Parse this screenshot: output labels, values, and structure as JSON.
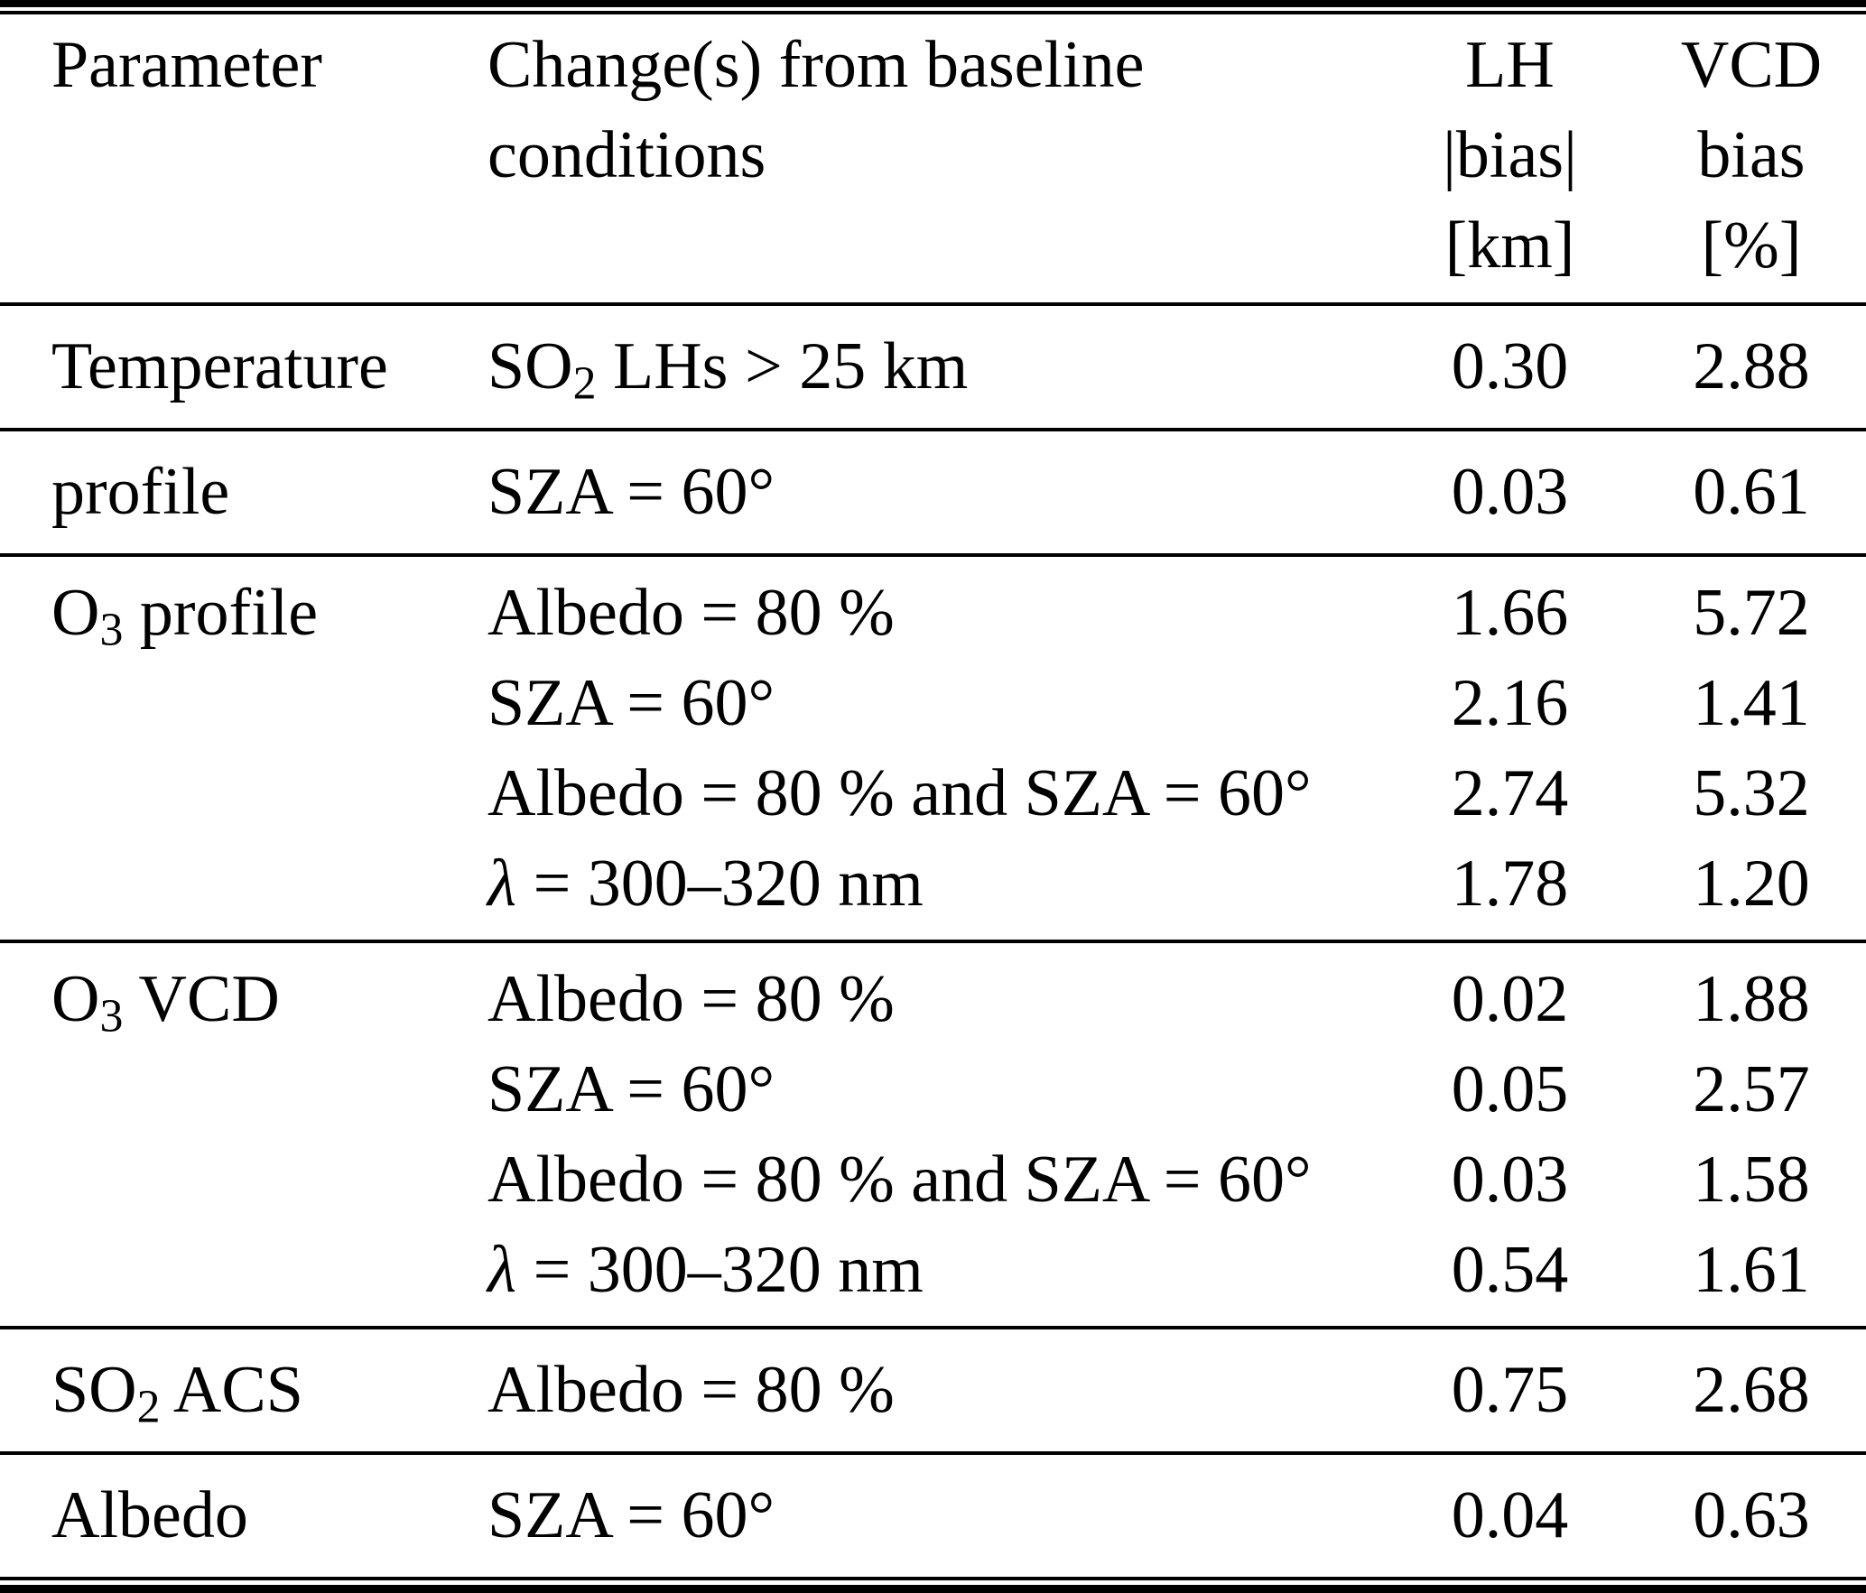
{
  "colors": {
    "text": "#000000",
    "background": "#ffffff",
    "rule": "#000000"
  },
  "header": {
    "parameter": "Parameter",
    "changes_line1": "Change(s) from baseline",
    "changes_line2": "conditions",
    "lh_line1": "LH",
    "lh_line2": "|bias|",
    "lh_line3": "[km]",
    "vcd_line1": "VCD",
    "vcd_line2": "bias",
    "vcd_line3": "[%]"
  },
  "sections": [
    {
      "p_base": "Temperature",
      "p_sub": "",
      "p_rest": "",
      "rows": [
        {
          "c_base": "SO",
          "c_sub": "2",
          "c_rest": " LHs > 25 km",
          "lh": "0.30",
          "vcd": "2.88"
        }
      ]
    },
    {
      "p_base": "profile",
      "p_sub": "",
      "p_rest": "",
      "rows": [
        {
          "c_base": "SZA = 60°",
          "c_sub": "",
          "c_rest": "",
          "lh": "0.03",
          "vcd": "0.61"
        }
      ]
    },
    {
      "p_base": "O",
      "p_sub": "3",
      "p_rest": " profile",
      "rows": [
        {
          "c_base": "Albedo = 80 %",
          "c_sub": "",
          "c_rest": "",
          "lh": "1.66",
          "vcd": "5.72"
        },
        {
          "c_base": "SZA = 60°",
          "c_sub": "",
          "c_rest": "",
          "lh": "2.16",
          "vcd": "1.41"
        },
        {
          "c_base": "Albedo = 80 % and SZA = 60°",
          "c_sub": "",
          "c_rest": "",
          "lh": "2.74",
          "vcd": "5.32"
        },
        {
          "c_base": "",
          "c_sub": "",
          "c_it": "λ",
          "c_rest": " = 300–320 nm",
          "lh": "1.78",
          "vcd": "1.20"
        }
      ]
    },
    {
      "p_base": "O",
      "p_sub": "3",
      "p_rest": " VCD",
      "rows": [
        {
          "c_base": "Albedo = 80 %",
          "c_sub": "",
          "c_rest": "",
          "lh": "0.02",
          "vcd": "1.88"
        },
        {
          "c_base": "SZA = 60°",
          "c_sub": "",
          "c_rest": "",
          "lh": "0.05",
          "vcd": "2.57"
        },
        {
          "c_base": "Albedo = 80 % and SZA = 60°",
          "c_sub": "",
          "c_rest": "",
          "lh": "0.03",
          "vcd": "1.58"
        },
        {
          "c_base": "",
          "c_sub": "",
          "c_it": "λ",
          "c_rest": " = 300–320 nm",
          "lh": "0.54",
          "vcd": "1.61"
        }
      ]
    },
    {
      "p_base": "SO",
      "p_sub": "2",
      "p_rest": " ACS",
      "rows": [
        {
          "c_base": "Albedo = 80 %",
          "c_sub": "",
          "c_rest": "",
          "lh": "0.75",
          "vcd": "2.68"
        }
      ]
    },
    {
      "p_base": "Albedo",
      "p_sub": "",
      "p_rest": "",
      "rows": [
        {
          "c_base": "SZA = 60°",
          "c_sub": "",
          "c_rest": "",
          "lh": "0.04",
          "vcd": "0.63"
        }
      ]
    }
  ]
}
